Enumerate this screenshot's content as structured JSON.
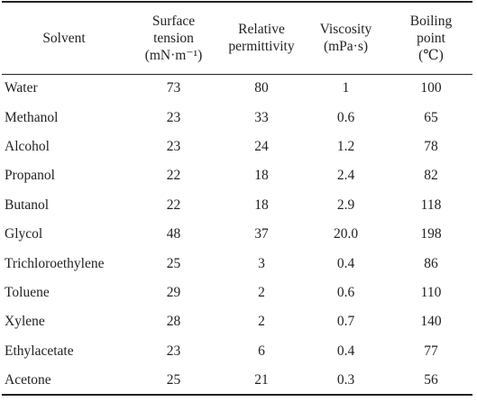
{
  "table": {
    "header": [
      [
        "Solvent"
      ],
      [
        "Surface",
        "tension",
        "(mN·m⁻¹)"
      ],
      [
        "Relative",
        "permittivity"
      ],
      [
        "Viscosity",
        "(mPa·s)"
      ],
      [
        "Boiling",
        "point",
        "(℃)"
      ]
    ],
    "rows": [
      [
        "Water",
        "73",
        "80",
        "1",
        "100"
      ],
      [
        "Methanol",
        "23",
        "33",
        "0.6",
        "65"
      ],
      [
        "Alcohol",
        "23",
        "24",
        "1.2",
        "78"
      ],
      [
        "Propanol",
        "22",
        "18",
        "2.4",
        "82"
      ],
      [
        "Butanol",
        "22",
        "18",
        "2.9",
        "118"
      ],
      [
        "Glycol",
        "48",
        "37",
        "20.0",
        "198"
      ],
      [
        "Trichloroethylene",
        "25",
        "3",
        "0.4",
        "86"
      ],
      [
        "Toluene",
        "29",
        "2",
        "0.6",
        "110"
      ],
      [
        "Xylene",
        "28",
        "2",
        "0.7",
        "140"
      ],
      [
        "Ethylacetate",
        "23",
        "6",
        "0.4",
        "77"
      ],
      [
        "Acetone",
        "25",
        "21",
        "0.3",
        "56"
      ]
    ]
  }
}
